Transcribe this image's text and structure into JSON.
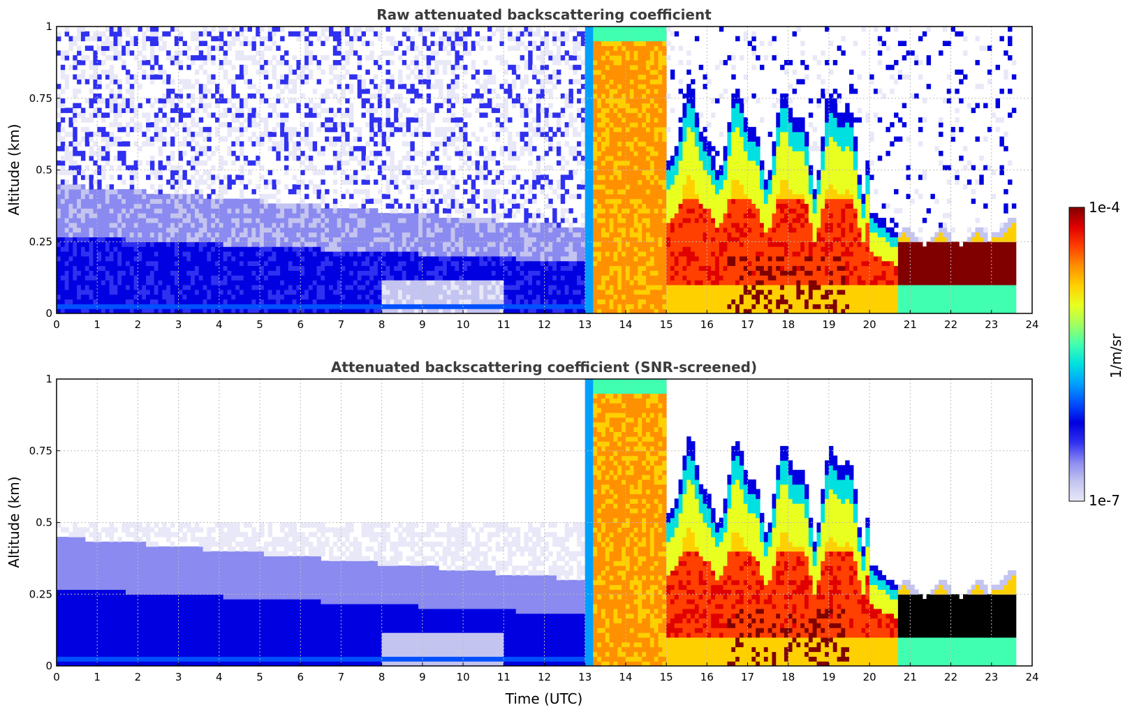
{
  "chart_data": [
    {
      "type": "heatmap",
      "title": "Raw attenuated backscattering coefficient",
      "xlabel": "",
      "ylabel": "Altitude (km)",
      "xlim": [
        0,
        24
      ],
      "ylim": [
        0,
        1
      ],
      "x_ticks": [
        "0",
        "1",
        "2",
        "3",
        "4",
        "5",
        "6",
        "7",
        "8",
        "9",
        "10",
        "11",
        "12",
        "13",
        "14",
        "15",
        "16",
        "17",
        "18",
        "19",
        "20",
        "21",
        "22",
        "23",
        "24"
      ],
      "y_ticks": [
        "0",
        "0.25",
        "0.5",
        "0.75",
        "1"
      ],
      "grid": true,
      "data_end_hour": 23.55,
      "screened": false
    },
    {
      "type": "heatmap",
      "title": "Attenuated backscattering coefficient (SNR-screened)",
      "xlabel": "Time (UTC)",
      "ylabel": "Altitude (km)",
      "xlim": [
        0,
        24
      ],
      "ylim": [
        0,
        1
      ],
      "x_ticks": [
        "0",
        "1",
        "2",
        "3",
        "4",
        "5",
        "6",
        "7",
        "8",
        "9",
        "10",
        "11",
        "12",
        "13",
        "14",
        "15",
        "16",
        "17",
        "18",
        "19",
        "20",
        "21",
        "22",
        "23",
        "24"
      ],
      "y_ticks": [
        "0",
        "0.25",
        "0.5",
        "0.75",
        "1"
      ],
      "grid": true,
      "data_end_hour": 23.55,
      "screened": true
    }
  ],
  "colorbar": {
    "label": "1/m/sr",
    "max_label": "1e-4",
    "min_label": "1e-7",
    "scale": "log",
    "colormap": [
      "#e8e8f8",
      "#c4c4f0",
      "#8a8af0",
      "#3030f0",
      "#0000e0",
      "#0050ff",
      "#00a0ff",
      "#00e0e0",
      "#40ffb0",
      "#a0ff60",
      "#e8ff20",
      "#ffd000",
      "#ff9000",
      "#ff4000",
      "#e00000",
      "#800000"
    ]
  },
  "overlay_color": "#000000"
}
